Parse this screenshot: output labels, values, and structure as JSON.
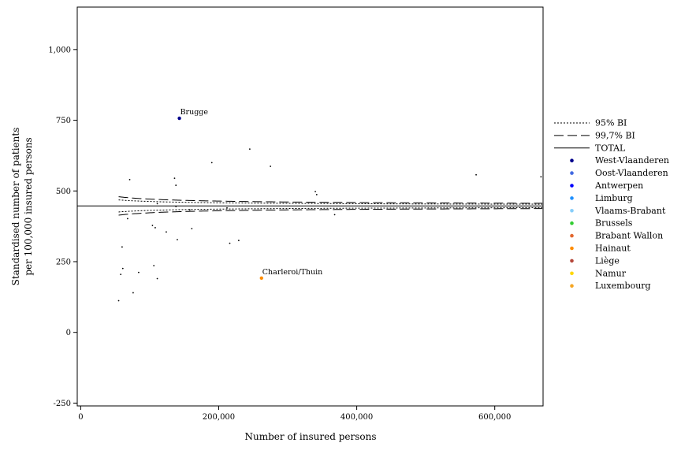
{
  "chart_data": {
    "type": "scatter",
    "xlabel": "Number of insured persons",
    "ylabel_lines": [
      "Standardised number of patients",
      "per 100,000 insured persons"
    ],
    "xlim": [
      -5000,
      670000
    ],
    "ylim": [
      -260,
      1150
    ],
    "x_ticks": [
      0,
      200000,
      400000,
      600000
    ],
    "x_tick_labels": [
      "0",
      "200,000",
      "400,000",
      "600,000"
    ],
    "y_ticks": [
      -250,
      0,
      250,
      500,
      750,
      1000
    ],
    "y_tick_labels": [
      "-250",
      "0",
      "250",
      "500",
      "750",
      "1,000"
    ],
    "grid": false,
    "legend_position": "right",
    "total_value": 447,
    "bands": [
      {
        "name": "95% BI",
        "style": "dotted",
        "z": 1.96
      },
      {
        "name": "99,7% BI",
        "style": "dashed",
        "z": 3
      }
    ],
    "total_label": "TOTAL",
    "band_model": {
      "total": 447,
      "k": 14570,
      "x_from": 55000,
      "x_to": 670000
    },
    "regions": [
      {
        "name": "West-Vlaanderen",
        "color": "#00008b"
      },
      {
        "name": "Oost-Vlaanderen",
        "color": "#4169e1"
      },
      {
        "name": "Antwerpen",
        "color": "#0000ff"
      },
      {
        "name": "Limburg",
        "color": "#1e90ff"
      },
      {
        "name": "Vlaams-Brabant",
        "color": "#87cefa"
      },
      {
        "name": "Brussels",
        "color": "#32cd32"
      },
      {
        "name": "Brabant Wallon",
        "color": "#e2672e"
      },
      {
        "name": "Hainaut",
        "color": "#ff8c00"
      },
      {
        "name": "Liège",
        "color": "#b5473a"
      },
      {
        "name": "Namur",
        "color": "#ffd700"
      },
      {
        "name": "Luxembourg",
        "color": "#f5a623"
      }
    ],
    "points": [
      {
        "x": 143000,
        "y": 757,
        "region": "West-Vlaanderen",
        "label": "Brugge",
        "highlight": true
      },
      {
        "x": 262000,
        "y": 192,
        "region": "Hainaut",
        "label": "Charleroi/Thuin",
        "highlight": true
      },
      {
        "x": 55000,
        "y": 112
      },
      {
        "x": 58000,
        "y": 205
      },
      {
        "x": 60000,
        "y": 302
      },
      {
        "x": 61000,
        "y": 226
      },
      {
        "x": 68000,
        "y": 402
      },
      {
        "x": 71000,
        "y": 540
      },
      {
        "x": 76000,
        "y": 140
      },
      {
        "x": 84000,
        "y": 212
      },
      {
        "x": 104000,
        "y": 378
      },
      {
        "x": 106000,
        "y": 236
      },
      {
        "x": 108000,
        "y": 370
      },
      {
        "x": 111000,
        "y": 455
      },
      {
        "x": 111000,
        "y": 190
      },
      {
        "x": 124000,
        "y": 355
      },
      {
        "x": 136000,
        "y": 545
      },
      {
        "x": 138000,
        "y": 520
      },
      {
        "x": 138000,
        "y": 445
      },
      {
        "x": 140000,
        "y": 328
      },
      {
        "x": 158000,
        "y": 433
      },
      {
        "x": 161000,
        "y": 367
      },
      {
        "x": 190000,
        "y": 600
      },
      {
        "x": 212000,
        "y": 440
      },
      {
        "x": 216000,
        "y": 315
      },
      {
        "x": 229000,
        "y": 325
      },
      {
        "x": 245000,
        "y": 648
      },
      {
        "x": 275000,
        "y": 587
      },
      {
        "x": 340000,
        "y": 498
      },
      {
        "x": 342000,
        "y": 487
      },
      {
        "x": 368000,
        "y": 416
      },
      {
        "x": 573000,
        "y": 557
      },
      {
        "x": 667000,
        "y": 550
      }
    ]
  }
}
